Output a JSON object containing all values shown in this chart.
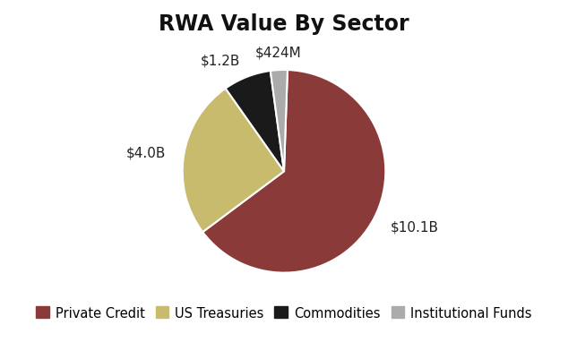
{
  "title": "RWA Value By Sector",
  "sectors": [
    "Private Credit",
    "US Treasuries",
    "Commodities",
    "Institutional Funds"
  ],
  "values": [
    10.1,
    4.0,
    1.2,
    0.424
  ],
  "labels": [
    "$10.1B",
    "$4.0B",
    "$1.2B",
    "$424M"
  ],
  "colors": [
    "#8B3A3A",
    "#C8BB6E",
    "#1A1A1A",
    "#ABABAB"
  ],
  "startangle": 88,
  "background_color": "#FFFFFF",
  "title_fontsize": 17,
  "label_fontsize": 11,
  "legend_fontsize": 10.5
}
